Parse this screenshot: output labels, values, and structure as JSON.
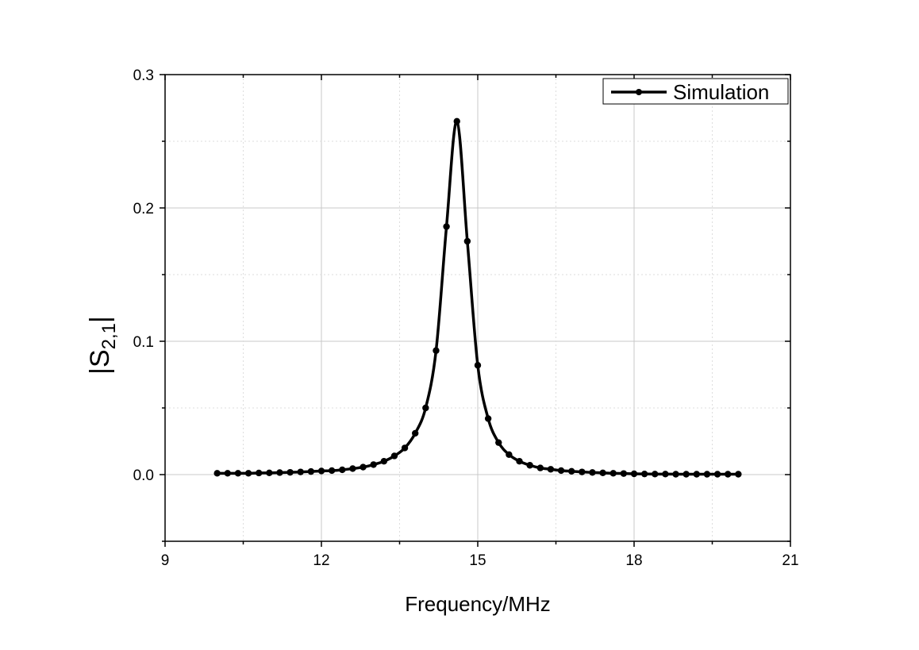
{
  "chart_data": {
    "type": "line",
    "title": "",
    "xlabel": "Frequency/MHz",
    "ylabel_main": "|S",
    "ylabel_sub": "2,1",
    "ylabel_end": "|",
    "xlim": [
      9,
      21
    ],
    "ylim": [
      -0.05,
      0.3
    ],
    "xticks": [
      9,
      12,
      15,
      18,
      21
    ],
    "xtick_labels": [
      "9",
      "12",
      "15",
      "18",
      "21"
    ],
    "yticks": [
      0.0,
      0.1,
      0.2,
      0.3
    ],
    "ytick_labels": [
      "0.0",
      "0.1",
      "0.2",
      "0.3"
    ],
    "grid": true,
    "legend_position": "top-right",
    "series": [
      {
        "name": "Simulation",
        "color": "#000000",
        "marker": "circle",
        "x": [
          10.0,
          10.2,
          10.4,
          10.6,
          10.8,
          11.0,
          11.2,
          11.4,
          11.6,
          11.8,
          12.0,
          12.2,
          12.4,
          12.6,
          12.8,
          13.0,
          13.2,
          13.4,
          13.6,
          13.8,
          14.0,
          14.2,
          14.4,
          14.6,
          14.8,
          15.0,
          15.2,
          15.4,
          15.6,
          15.8,
          16.0,
          16.2,
          16.4,
          16.6,
          16.8,
          17.0,
          17.2,
          17.4,
          17.6,
          17.8,
          18.0,
          18.2,
          18.4,
          18.6,
          18.8,
          19.0,
          19.2,
          19.4,
          19.6,
          19.8,
          20.0
        ],
        "y": [
          0.001,
          0.001,
          0.001,
          0.001,
          0.0012,
          0.0013,
          0.0015,
          0.0017,
          0.002,
          0.0023,
          0.0027,
          0.003,
          0.0036,
          0.0045,
          0.0056,
          0.0075,
          0.01,
          0.014,
          0.02,
          0.031,
          0.05,
          0.093,
          0.186,
          0.265,
          0.175,
          0.082,
          0.042,
          0.024,
          0.015,
          0.01,
          0.007,
          0.005,
          0.004,
          0.003,
          0.0025,
          0.002,
          0.0016,
          0.0013,
          0.001,
          0.0008,
          0.0006,
          0.0005,
          0.0004,
          0.0004,
          0.0003,
          0.0003,
          0.0003,
          0.0003,
          0.0003,
          0.0003,
          0.0003
        ]
      }
    ]
  }
}
